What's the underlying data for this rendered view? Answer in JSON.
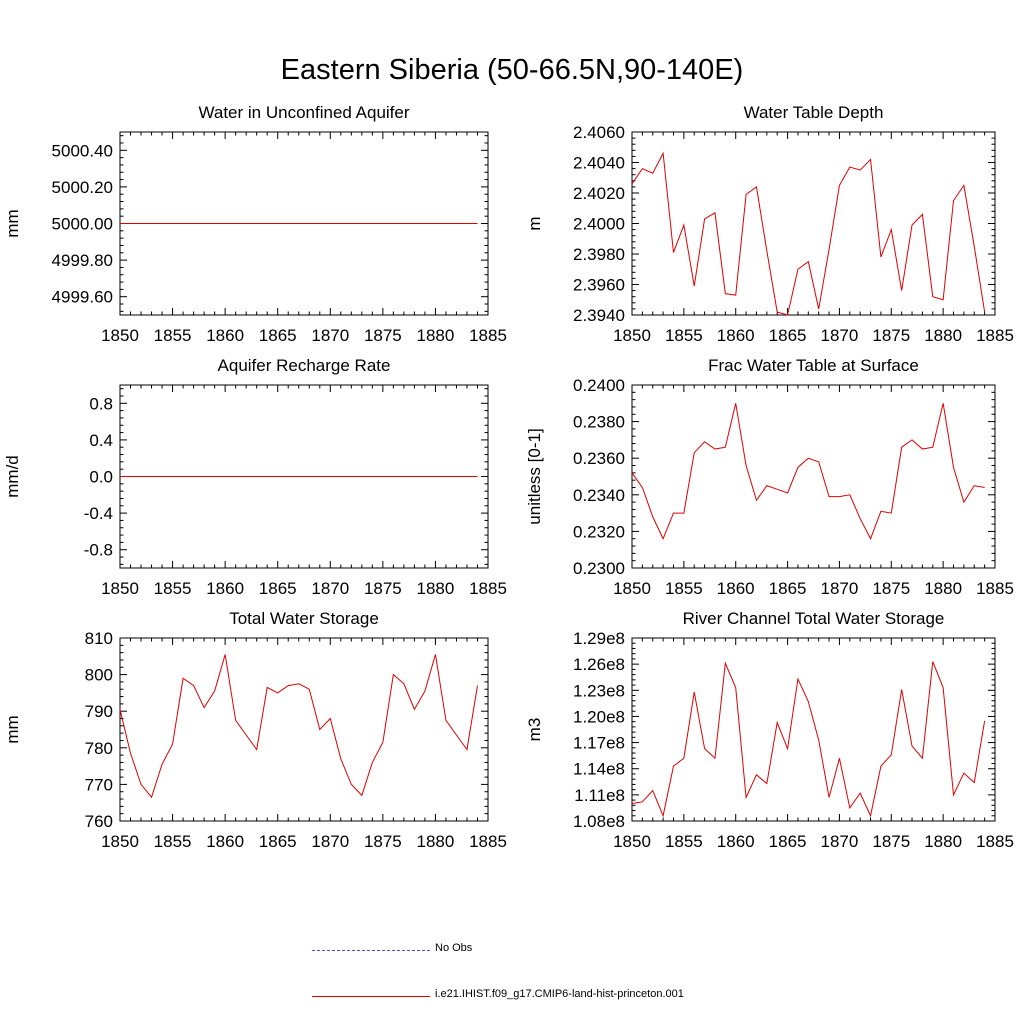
{
  "figure": {
    "title": "Eastern Siberia (50-66.5N,90-140E)"
  },
  "legend": {
    "items": [
      {
        "label": "No Obs",
        "color": "#4b4bd6",
        "style": "dashed"
      },
      {
        "label": "i.e21.IHIST.f09_g17.CMIP6-land-hist-princeton.001",
        "color": "#e00000",
        "style": "solid"
      }
    ]
  },
  "chart_data": [
    {
      "type": "line",
      "title": "Water in Unconfined Aquifer",
      "ylabel": "mm",
      "xlim": [
        1850,
        1885
      ],
      "ylim": [
        4999.5,
        5000.5
      ],
      "xticks": [
        1850,
        1855,
        1860,
        1865,
        1870,
        1875,
        1880,
        1885
      ],
      "yticks": [
        4999.6,
        4999.8,
        5000.0,
        5000.2,
        5000.4
      ],
      "ytick_labels": [
        "4999.60",
        "4999.80",
        "5000.00",
        "5000.20",
        "5000.40"
      ],
      "x": [
        1850,
        1884
      ],
      "series": [
        {
          "values": [
            5000.0,
            5000.0
          ],
          "color": "#e00000"
        }
      ]
    },
    {
      "type": "line",
      "title": "Water Table Depth",
      "ylabel": "m",
      "xlim": [
        1850,
        1885
      ],
      "ylim": [
        2.394,
        2.406
      ],
      "xticks": [
        1850,
        1855,
        1860,
        1865,
        1870,
        1875,
        1880,
        1885
      ],
      "yticks": [
        2.394,
        2.396,
        2.398,
        2.4,
        2.402,
        2.404,
        2.406
      ],
      "ytick_labels": [
        "2.3940",
        "2.3960",
        "2.3980",
        "2.4000",
        "2.4020",
        "2.4040",
        "2.4060"
      ],
      "x": [
        1850,
        1851,
        1852,
        1853,
        1854,
        1855,
        1856,
        1857,
        1858,
        1859,
        1860,
        1861,
        1862,
        1863,
        1864,
        1865,
        1866,
        1867,
        1868,
        1869,
        1870,
        1871,
        1872,
        1873,
        1874,
        1875,
        1876,
        1877,
        1878,
        1879,
        1880,
        1881,
        1882,
        1883,
        1884
      ],
      "series": [
        {
          "color": "#e00000",
          "values": [
            2.4026,
            2.4036,
            2.4033,
            2.4046,
            2.3981,
            2.3999,
            2.3959,
            2.4003,
            2.4007,
            2.3954,
            2.3953,
            2.4019,
            2.4024,
            2.3982,
            2.3942,
            2.394,
            2.397,
            2.3975,
            2.3944,
            2.3983,
            2.4025,
            2.4037,
            2.4035,
            2.4042,
            2.3978,
            2.3996,
            2.3956,
            2.3999,
            2.4006,
            2.3952,
            2.395,
            2.4015,
            2.4025,
            2.3985,
            2.3942
          ]
        }
      ]
    },
    {
      "type": "line",
      "title": "Aquifer Recharge Rate",
      "ylabel": "mm/d",
      "xlim": [
        1850,
        1885
      ],
      "ylim": [
        -1.0,
        1.0
      ],
      "xticks": [
        1850,
        1855,
        1860,
        1865,
        1870,
        1875,
        1880,
        1885
      ],
      "yticks": [
        -0.8,
        -0.4,
        0.0,
        0.4,
        0.8
      ],
      "ytick_labels": [
        "-0.8",
        "-0.4",
        "0.0",
        "0.4",
        "0.8"
      ],
      "x": [
        1850,
        1884
      ],
      "series": [
        {
          "values": [
            0.0,
            0.0
          ],
          "color": "#e00000"
        }
      ]
    },
    {
      "type": "line",
      "title": "Frac Water Table at Surface",
      "ylabel": "unitless [0-1]",
      "xlim": [
        1850,
        1885
      ],
      "ylim": [
        0.23,
        0.24
      ],
      "xticks": [
        1850,
        1855,
        1860,
        1865,
        1870,
        1875,
        1880,
        1885
      ],
      "yticks": [
        0.23,
        0.232,
        0.234,
        0.236,
        0.238,
        0.24
      ],
      "ytick_labels": [
        "0.2300",
        "0.2320",
        "0.2340",
        "0.2360",
        "0.2380",
        "0.2400"
      ],
      "x": [
        1850,
        1851,
        1852,
        1853,
        1854,
        1855,
        1856,
        1857,
        1858,
        1859,
        1860,
        1861,
        1862,
        1863,
        1864,
        1865,
        1866,
        1867,
        1868,
        1869,
        1870,
        1871,
        1872,
        1873,
        1874,
        1875,
        1876,
        1877,
        1878,
        1879,
        1880,
        1881,
        1882,
        1883,
        1884
      ],
      "series": [
        {
          "color": "#e00000",
          "values": [
            0.2352,
            0.2344,
            0.2328,
            0.2316,
            0.233,
            0.233,
            0.2363,
            0.2369,
            0.2365,
            0.2366,
            0.239,
            0.2356,
            0.2337,
            0.2345,
            0.2343,
            0.2341,
            0.2355,
            0.236,
            0.2358,
            0.2339,
            0.2339,
            0.234,
            0.2327,
            0.2316,
            0.2331,
            0.233,
            0.2366,
            0.237,
            0.2365,
            0.2366,
            0.239,
            0.2355,
            0.2336,
            0.2345,
            0.2344
          ]
        }
      ]
    },
    {
      "type": "line",
      "title": "Total Water Storage",
      "ylabel": "mm",
      "xlim": [
        1850,
        1885
      ],
      "ylim": [
        760,
        810
      ],
      "xticks": [
        1850,
        1855,
        1860,
        1865,
        1870,
        1875,
        1880,
        1885
      ],
      "yticks": [
        760,
        770,
        780,
        790,
        800,
        810
      ],
      "ytick_labels": [
        "760",
        "770",
        "780",
        "790",
        "800",
        "810"
      ],
      "x": [
        1850,
        1851,
        1852,
        1853,
        1854,
        1855,
        1856,
        1857,
        1858,
        1859,
        1860,
        1861,
        1862,
        1863,
        1864,
        1865,
        1866,
        1867,
        1868,
        1869,
        1870,
        1871,
        1872,
        1873,
        1874,
        1875,
        1876,
        1877,
        1878,
        1879,
        1880,
        1881,
        1882,
        1883,
        1884
      ],
      "series": [
        {
          "color": "#e00000",
          "values": [
            790.5,
            778.5,
            770.0,
            766.5,
            775.5,
            781.0,
            799.0,
            797.0,
            791.0,
            795.5,
            805.5,
            787.5,
            783.5,
            779.5,
            796.5,
            795.0,
            797.0,
            797.5,
            796.0,
            785.0,
            788.0,
            777.0,
            770.0,
            767.0,
            776.0,
            781.5,
            800.0,
            797.5,
            790.5,
            795.5,
            805.5,
            787.5,
            783.5,
            779.5,
            797.0
          ]
        }
      ]
    },
    {
      "type": "line",
      "title": "River Channel Total Water Storage",
      "ylabel": "m3",
      "xlim": [
        1850,
        1885
      ],
      "ylim": [
        108000000,
        129000000
      ],
      "xticks": [
        1850,
        1855,
        1860,
        1865,
        1870,
        1875,
        1880,
        1885
      ],
      "yticks": [
        108000000,
        111000000,
        114000000,
        117000000,
        120000000,
        123000000,
        126000000,
        129000000
      ],
      "ytick_labels": [
        "1.08e8",
        "1.11e8",
        "1.14e8",
        "1.17e8",
        "1.20e8",
        "1.23e8",
        "1.26e8",
        "1.29e8"
      ],
      "x": [
        1850,
        1851,
        1852,
        1853,
        1854,
        1855,
        1856,
        1857,
        1858,
        1859,
        1860,
        1861,
        1862,
        1863,
        1864,
        1865,
        1866,
        1867,
        1868,
        1869,
        1870,
        1871,
        1872,
        1873,
        1874,
        1875,
        1876,
        1877,
        1878,
        1879,
        1880,
        1881,
        1882,
        1883,
        1884
      ],
      "series": [
        {
          "color": "#e00000",
          "values": [
            110000000,
            110200000,
            111500000,
            108600000,
            114300000,
            115200000,
            122800000,
            116300000,
            115200000,
            126100000,
            123300000,
            110700000,
            113300000,
            112300000,
            119300000,
            116300000,
            124300000,
            121700000,
            117300000,
            110700000,
            115200000,
            109500000,
            111200000,
            108600000,
            114300000,
            115600000,
            123100000,
            116600000,
            115200000,
            126300000,
            123300000,
            111000000,
            113500000,
            112400000,
            119500000
          ]
        }
      ]
    }
  ]
}
